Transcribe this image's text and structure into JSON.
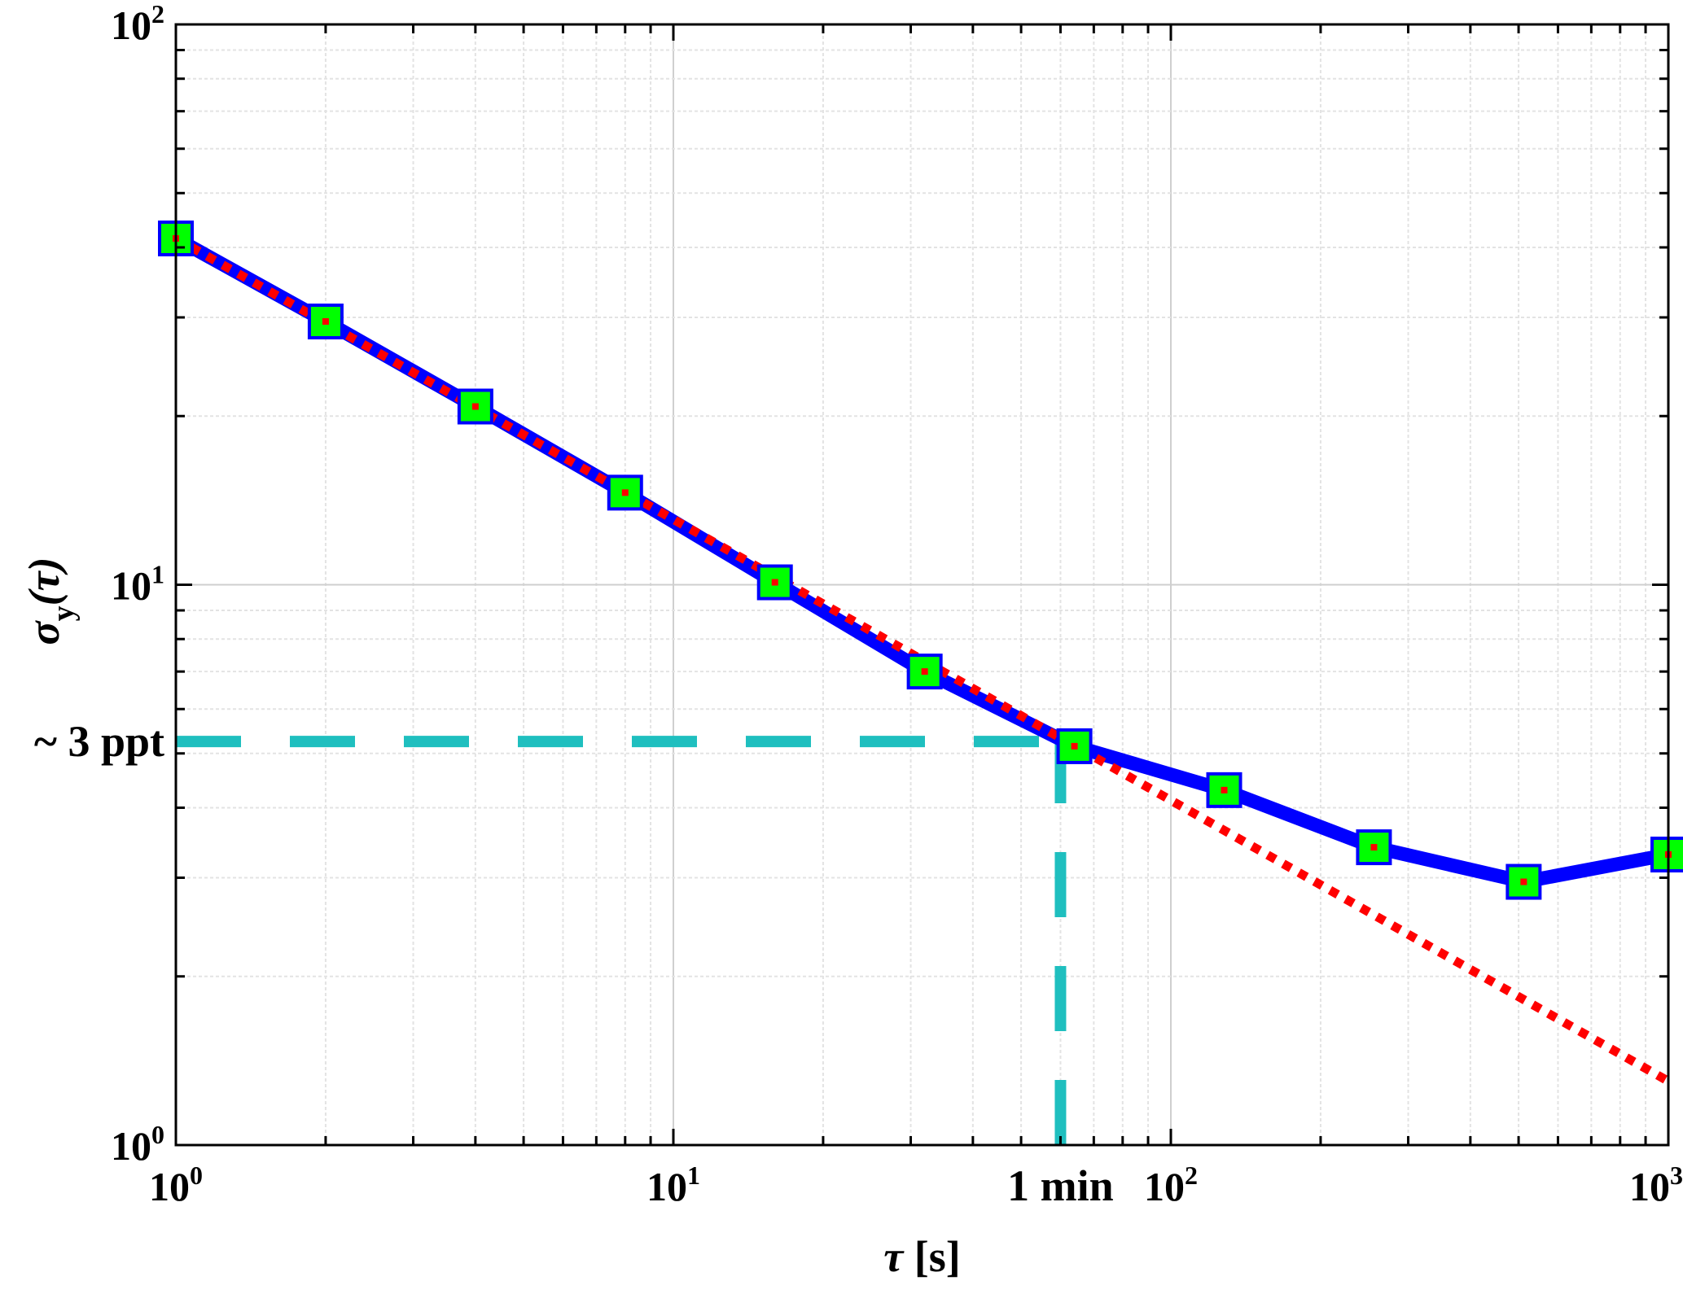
{
  "chart_data": {
    "type": "line",
    "x_scale": "log",
    "y_scale": "log",
    "xlim": [
      1,
      1000
    ],
    "ylim": [
      1,
      100
    ],
    "xlabel": "τ [s]",
    "ylabel": "σy(τ)",
    "grid": true,
    "x_ticks": [
      {
        "value": 1,
        "base": "10",
        "exp": "0"
      },
      {
        "value": 10,
        "base": "10",
        "exp": "1"
      },
      {
        "value": 100,
        "base": "10",
        "exp": "2"
      },
      {
        "value": 1000,
        "base": "10",
        "exp": "3"
      }
    ],
    "y_ticks": [
      {
        "value": 1,
        "base": "10",
        "exp": "0"
      },
      {
        "value": 10,
        "base": "10",
        "exp": "1"
      },
      {
        "value": 100,
        "base": "10",
        "exp": "2"
      }
    ],
    "series": [
      {
        "style": "solid line with square markers",
        "color": "#0000ff",
        "marker_color": "#00ff00",
        "x": [
          1,
          2,
          4,
          8,
          16,
          32,
          64,
          128,
          256,
          512,
          1000
        ],
        "y": [
          41.5,
          29.5,
          20.8,
          14.6,
          10.1,
          7.0,
          5.15,
          4.3,
          3.4,
          2.95,
          3.3
        ]
      },
      {
        "style": "dotted line",
        "color": "#ff0000",
        "x": [
          1,
          1000
        ],
        "y": [
          41.5,
          1.3
        ]
      },
      {
        "style": "dashed line",
        "color": "#1fbfbf",
        "x": [
          1,
          60
        ],
        "y": [
          5.25,
          5.25
        ]
      },
      {
        "style": "dashed line",
        "color": "#1fbfbf",
        "x": [
          60,
          60
        ],
        "y": [
          1,
          5.25
        ]
      }
    ],
    "annotations": [
      {
        "text": "~ 3 ppt",
        "anchor": "y-axis",
        "value": 5.25
      },
      {
        "text": "1 min",
        "anchor": "x-axis",
        "value": 60
      }
    ]
  }
}
